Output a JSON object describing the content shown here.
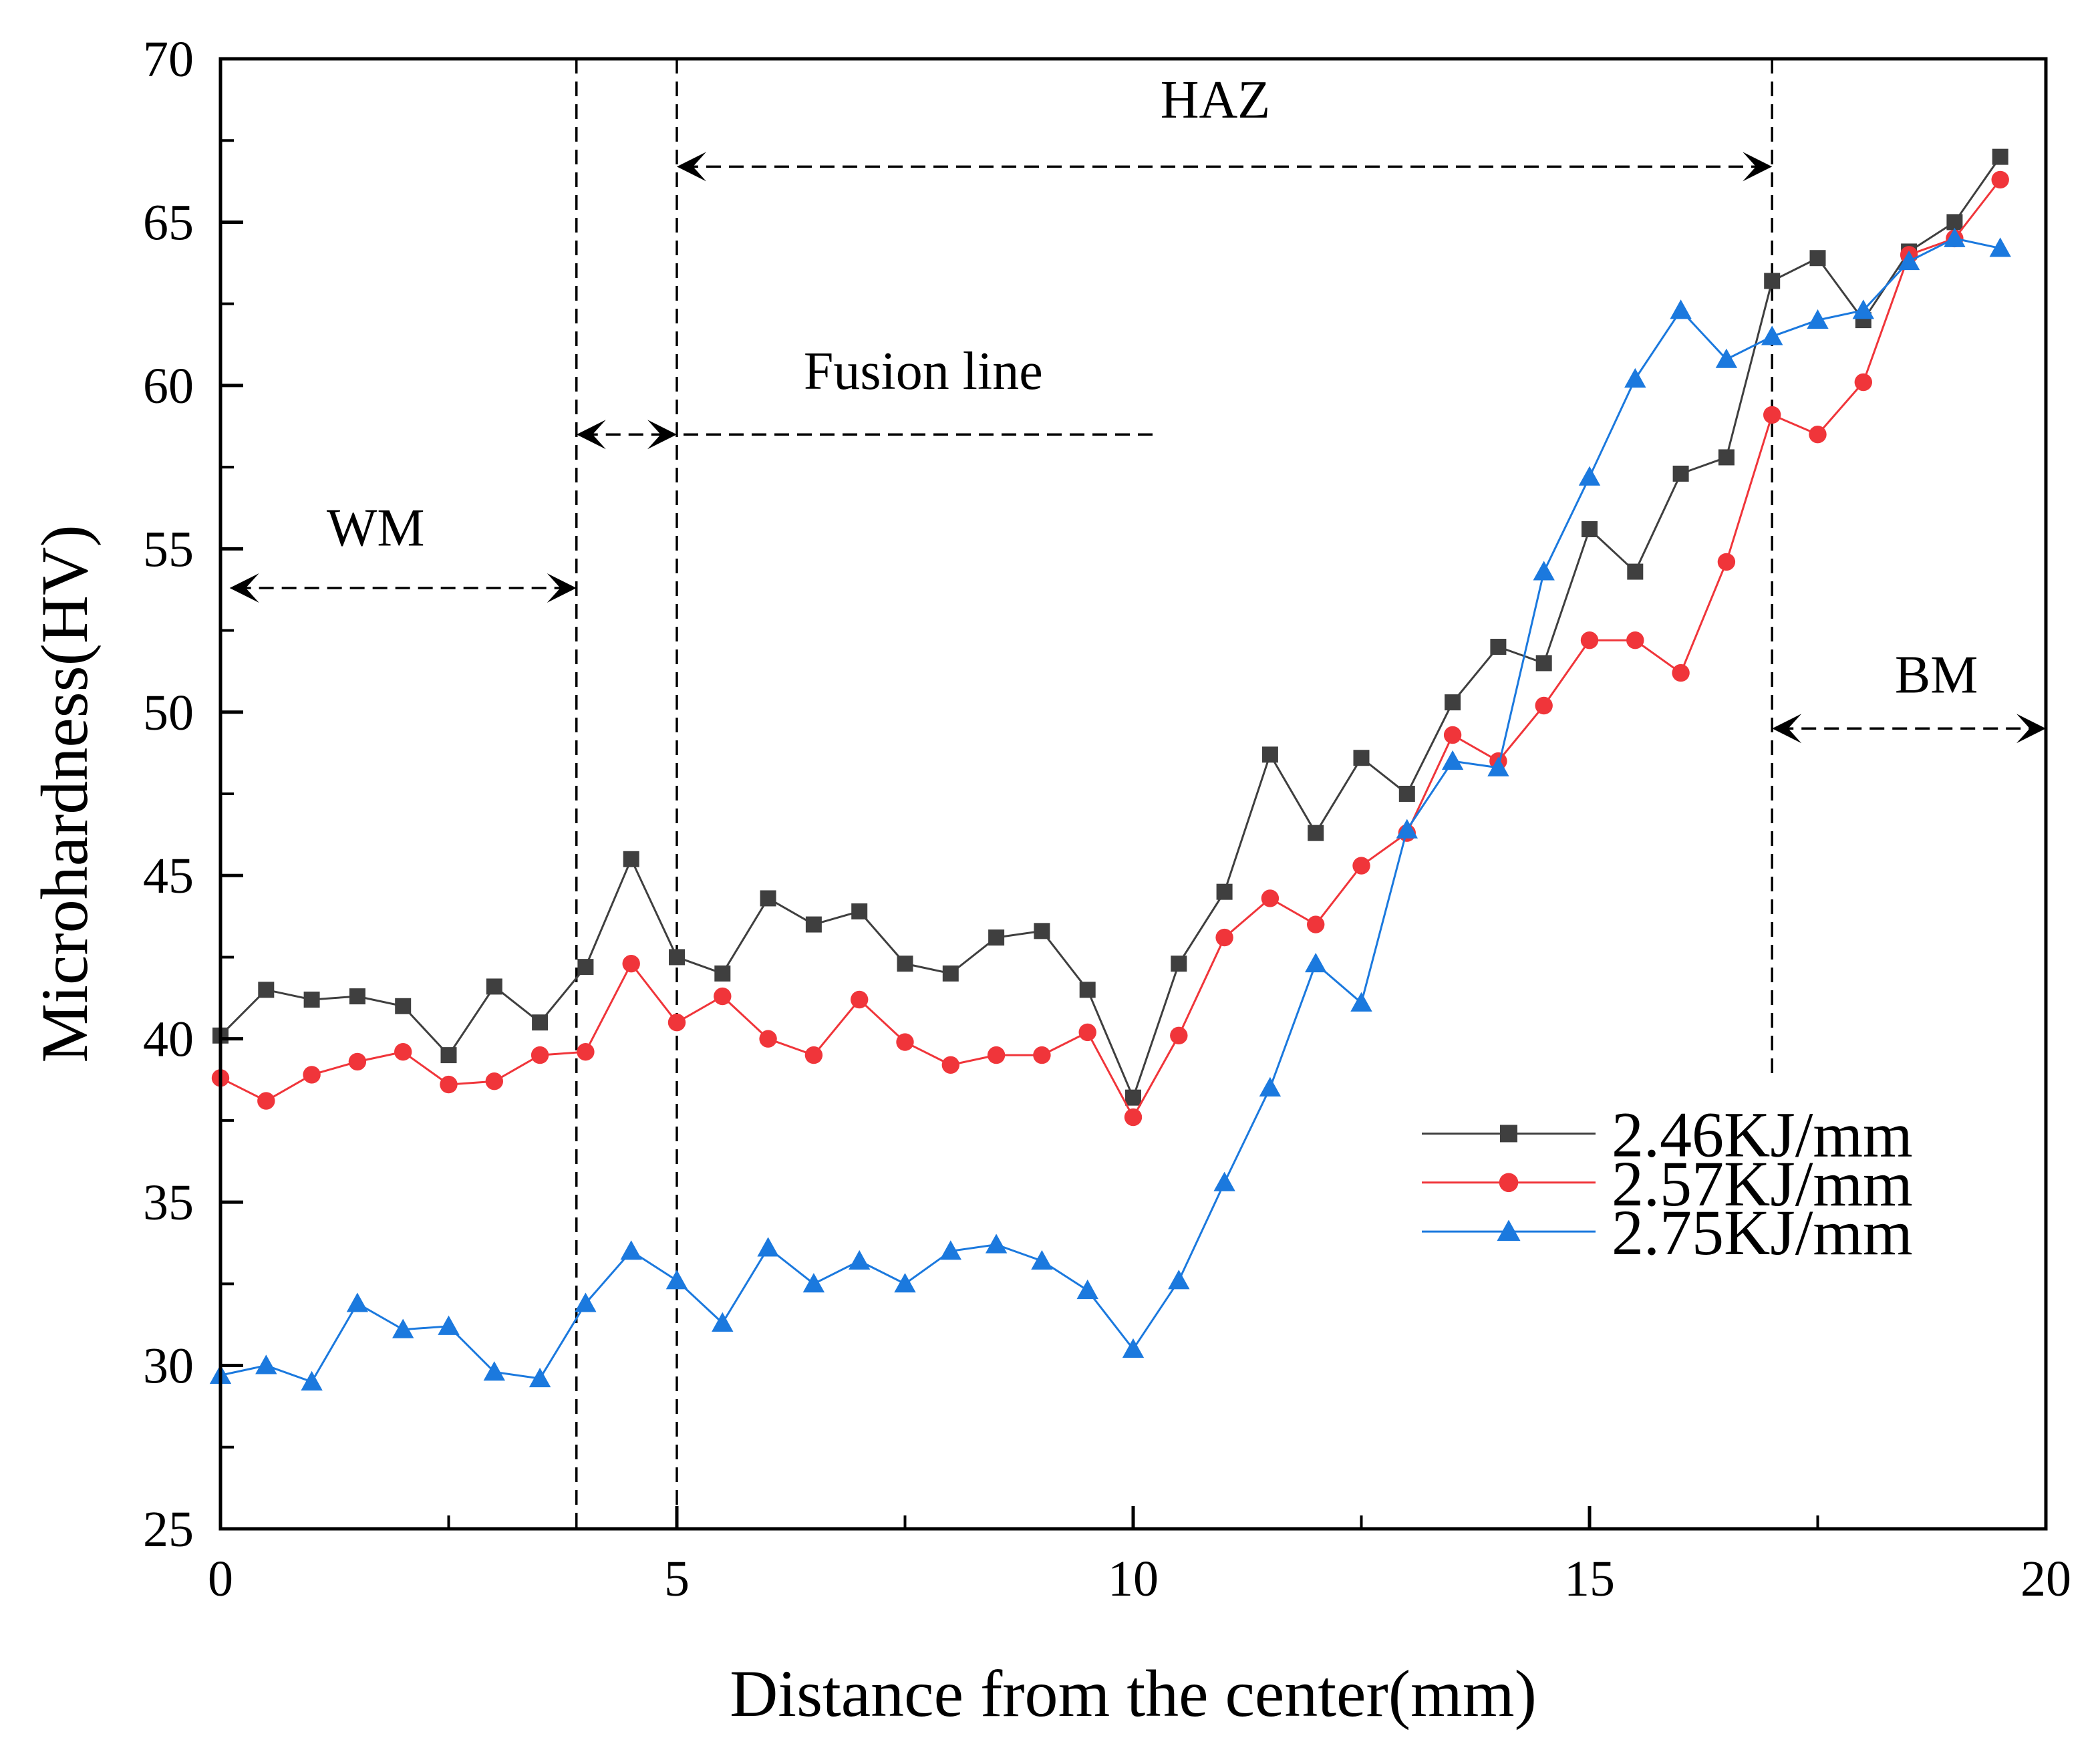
{
  "chart_data": {
    "type": "line",
    "title": "",
    "xlabel": "Distance from the center(mm)",
    "ylabel": "Microhardness(HV)",
    "xlim": [
      0,
      20
    ],
    "ylim": [
      25,
      70
    ],
    "xticks": [
      0,
      5,
      10,
      15,
      20
    ],
    "yticks": [
      25,
      30,
      35,
      40,
      45,
      50,
      55,
      60,
      65,
      70
    ],
    "grid": false,
    "legend_position": "bottom-right",
    "x": [
      0,
      0.5,
      1,
      1.5,
      2,
      2.5,
      3,
      3.5,
      4,
      4.5,
      5,
      5.5,
      6,
      6.5,
      7,
      7.5,
      8,
      8.5,
      9,
      9.5,
      10,
      10.5,
      11,
      11.5,
      12,
      12.5,
      13,
      13.5,
      14,
      14.5,
      15,
      15.5,
      16,
      16.5,
      17,
      17.5,
      18,
      18.5,
      19,
      19.5
    ],
    "series": [
      {
        "name": "2.46KJ/mm",
        "color": "#3f3f3f",
        "marker": "square",
        "values": [
          40.1,
          41.5,
          41.2,
          41.3,
          41.0,
          39.5,
          41.6,
          40.5,
          42.2,
          45.5,
          42.5,
          42.0,
          44.3,
          43.5,
          43.9,
          42.3,
          42.0,
          43.1,
          43.3,
          41.5,
          38.2,
          42.3,
          44.5,
          48.7,
          46.3,
          48.6,
          47.5,
          50.3,
          52.0,
          51.5,
          55.6,
          54.3,
          57.3,
          57.8,
          63.2,
          63.9,
          62.0,
          64.1,
          65.0,
          67.0
        ]
      },
      {
        "name": "2.57KJ/mm",
        "color": "#f0353a",
        "marker": "circle",
        "values": [
          38.8,
          38.1,
          38.9,
          39.3,
          39.6,
          38.6,
          38.7,
          39.5,
          39.6,
          42.3,
          40.5,
          41.3,
          40.0,
          39.5,
          41.2,
          39.9,
          39.2,
          39.5,
          39.5,
          40.2,
          37.6,
          40.1,
          43.1,
          44.3,
          43.5,
          45.3,
          46.3,
          49.3,
          48.5,
          50.2,
          52.2,
          52.2,
          51.2,
          54.6,
          59.1,
          58.5,
          60.1,
          64.0,
          64.5,
          66.3
        ]
      },
      {
        "name": "2.75KJ/mm",
        "color": "#1b79de",
        "marker": "triangle",
        "values": [
          29.7,
          30.0,
          29.5,
          31.9,
          31.1,
          31.2,
          29.8,
          29.6,
          31.9,
          33.5,
          32.6,
          31.3,
          33.6,
          32.5,
          33.2,
          32.5,
          33.5,
          33.7,
          33.2,
          32.3,
          30.5,
          32.6,
          35.6,
          38.5,
          42.3,
          41.1,
          46.4,
          48.5,
          48.3,
          54.3,
          57.2,
          60.2,
          62.3,
          60.8,
          61.5,
          62.0,
          62.3,
          63.8,
          64.5,
          64.2
        ]
      }
    ],
    "vlines": [
      3.9,
      5.0,
      17.0
    ],
    "annotations": [
      {
        "text": "HAZ",
        "x": 10.9,
        "y": 68.2,
        "arrow_from": 5.0,
        "arrow_to": 17.0,
        "arrow_y": 66.7
      },
      {
        "text": "Fusion line",
        "x": 7.7,
        "y": 59.9,
        "arrow_from": 3.9,
        "arrow_to": 5.0,
        "arrow_y": 58.5,
        "leader_to": 10.3
      },
      {
        "text": "WM",
        "x": 1.7,
        "y": 55.1,
        "arrow_from": 0.1,
        "arrow_to": 3.9,
        "arrow_y": 53.8
      },
      {
        "text": "BM",
        "x": 18.8,
        "y": 50.6,
        "arrow_from": 17.0,
        "arrow_to": 20.0,
        "arrow_y": 49.5
      }
    ]
  }
}
